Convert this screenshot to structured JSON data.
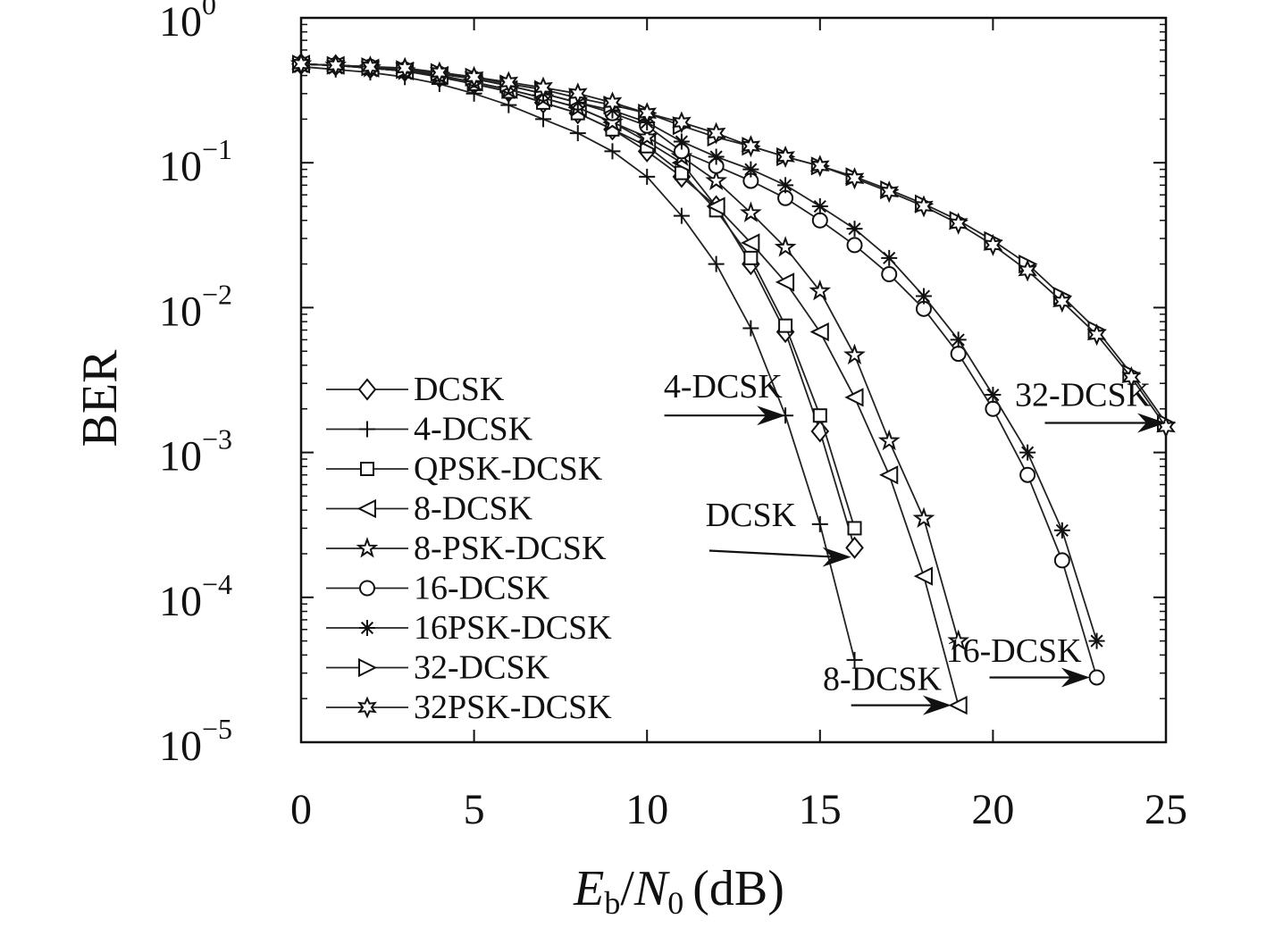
{
  "chart_data": {
    "type": "line",
    "xlabel": "E_b/N_0 (dB)",
    "xlabel_parts": {
      "e": "E",
      "b": "b",
      "slash": "/",
      "n": "N",
      "zero": "0",
      "unit": "(dB)"
    },
    "ylabel": "BER",
    "xlim": [
      0,
      25
    ],
    "ylim": [
      1e-05,
      1
    ],
    "y_scale": "log",
    "grid": false,
    "legend_position": "left-bottom",
    "x_ticks": [
      {
        "value": 0,
        "label": "0"
      },
      {
        "value": 5,
        "label": "5"
      },
      {
        "value": 10,
        "label": "10"
      },
      {
        "value": 15,
        "label": "15"
      },
      {
        "value": 20,
        "label": "20"
      },
      {
        "value": 25,
        "label": "25"
      }
    ],
    "y_ticks": [
      {
        "value": 1,
        "base": "10",
        "exp": "0"
      },
      {
        "value": 0.1,
        "base": "10",
        "exp": "−1"
      },
      {
        "value": 0.01,
        "base": "10",
        "exp": "−2"
      },
      {
        "value": 0.001,
        "base": "10",
        "exp": "−3"
      },
      {
        "value": 0.0001,
        "base": "10",
        "exp": "−4"
      },
      {
        "value": 1e-05,
        "base": "10",
        "exp": "−5"
      }
    ],
    "series": [
      {
        "name": "DCSK",
        "marker": "diamond",
        "x": [
          0,
          1,
          2,
          3,
          4,
          5,
          6,
          7,
          8,
          9,
          10,
          11,
          12,
          13,
          14,
          15,
          16
        ],
        "y": [
          0.48,
          0.47,
          0.45,
          0.43,
          0.39,
          0.35,
          0.31,
          0.26,
          0.22,
          0.17,
          0.12,
          0.08,
          0.05,
          0.02,
          0.0068,
          0.0014,
          0.00022
        ]
      },
      {
        "name": "4-DCSK",
        "marker": "plus",
        "x": [
          0,
          1,
          2,
          3,
          4,
          5,
          6,
          7,
          8,
          9,
          10,
          11,
          12,
          13,
          14,
          15,
          16
        ],
        "y": [
          0.46,
          0.44,
          0.42,
          0.39,
          0.35,
          0.3,
          0.25,
          0.2,
          0.16,
          0.12,
          0.08,
          0.043,
          0.02,
          0.0072,
          0.0018,
          0.00032,
          3.7e-05
        ]
      },
      {
        "name": "QPSK-DCSK",
        "marker": "square",
        "x": [
          0,
          1,
          2,
          3,
          4,
          5,
          6,
          7,
          8,
          9,
          10,
          11,
          12,
          13,
          14,
          15,
          16
        ],
        "y": [
          0.48,
          0.47,
          0.45,
          0.43,
          0.39,
          0.35,
          0.31,
          0.26,
          0.22,
          0.17,
          0.13,
          0.085,
          0.047,
          0.022,
          0.0075,
          0.0018,
          0.0003
        ]
      },
      {
        "name": "8-DCSK",
        "marker": "triangle-left",
        "x": [
          0,
          1,
          2,
          3,
          4,
          5,
          6,
          7,
          8,
          9,
          10,
          11,
          12,
          13,
          14,
          15,
          16,
          17,
          18,
          19
        ],
        "y": [
          0.48,
          0.47,
          0.45,
          0.43,
          0.4,
          0.36,
          0.32,
          0.28,
          0.24,
          0.19,
          0.14,
          0.1,
          0.05,
          0.028,
          0.015,
          0.0068,
          0.0024,
          0.0007,
          0.00014,
          1.8e-05
        ]
      },
      {
        "name": "8-PSK-DCSK",
        "marker": "star5",
        "x": [
          0,
          1,
          2,
          3,
          4,
          5,
          6,
          7,
          8,
          9,
          10,
          11,
          12,
          13,
          14,
          15,
          16,
          17,
          18,
          19
        ],
        "y": [
          0.48,
          0.47,
          0.45,
          0.43,
          0.4,
          0.36,
          0.32,
          0.28,
          0.24,
          0.19,
          0.15,
          0.11,
          0.075,
          0.045,
          0.026,
          0.013,
          0.0047,
          0.0012,
          0.00035,
          5e-05
        ]
      },
      {
        "name": "16-DCSK",
        "marker": "circle",
        "x": [
          0,
          1,
          2,
          3,
          4,
          5,
          6,
          7,
          8,
          9,
          10,
          11,
          12,
          13,
          14,
          15,
          16,
          17,
          18,
          19,
          20,
          21,
          22,
          23
        ],
        "y": [
          0.48,
          0.47,
          0.46,
          0.44,
          0.41,
          0.38,
          0.34,
          0.3,
          0.26,
          0.22,
          0.18,
          0.12,
          0.095,
          0.075,
          0.057,
          0.04,
          0.027,
          0.017,
          0.0098,
          0.0048,
          0.002,
          0.0007,
          0.00018,
          2.8e-05
        ]
      },
      {
        "name": "16PSK-DCSK",
        "marker": "asterisk",
        "x": [
          0,
          1,
          2,
          3,
          4,
          5,
          6,
          7,
          8,
          9,
          10,
          11,
          12,
          13,
          14,
          15,
          16,
          17,
          18,
          19,
          20,
          21,
          22,
          23
        ],
        "y": [
          0.48,
          0.47,
          0.46,
          0.44,
          0.41,
          0.38,
          0.34,
          0.3,
          0.26,
          0.23,
          0.19,
          0.14,
          0.11,
          0.09,
          0.07,
          0.05,
          0.035,
          0.022,
          0.012,
          0.006,
          0.0025,
          0.001,
          0.00029,
          5e-05
        ]
      },
      {
        "name": "32-DCSK",
        "marker": "triangle-right",
        "x": [
          0,
          1,
          2,
          3,
          4,
          5,
          6,
          7,
          8,
          9,
          10,
          11,
          12,
          13,
          14,
          15,
          16,
          17,
          18,
          19,
          20,
          21,
          22,
          23,
          24,
          25
        ],
        "y": [
          0.48,
          0.47,
          0.46,
          0.44,
          0.42,
          0.39,
          0.35,
          0.32,
          0.28,
          0.25,
          0.22,
          0.18,
          0.15,
          0.13,
          0.11,
          0.095,
          0.08,
          0.065,
          0.052,
          0.04,
          0.029,
          0.02,
          0.012,
          0.007,
          0.0035,
          0.0016
        ]
      },
      {
        "name": "32PSK-DCSK",
        "marker": "star6",
        "x": [
          0,
          1,
          2,
          3,
          4,
          5,
          6,
          7,
          8,
          9,
          10,
          11,
          12,
          13,
          14,
          15,
          16,
          17,
          18,
          19,
          20,
          21,
          22,
          23,
          24,
          25
        ],
        "y": [
          0.48,
          0.47,
          0.46,
          0.45,
          0.42,
          0.39,
          0.36,
          0.33,
          0.3,
          0.26,
          0.22,
          0.19,
          0.16,
          0.13,
          0.11,
          0.095,
          0.078,
          0.063,
          0.05,
          0.038,
          0.027,
          0.018,
          0.011,
          0.0065,
          0.0033,
          0.0015
        ]
      }
    ],
    "annotations": [
      {
        "text": "4-DCSK",
        "label_x": 12.2,
        "label_y": 0.0024,
        "tail_x": 10.5,
        "tail_y": 0.0018,
        "tip_x": 14.0,
        "tip_y": 0.0018
      },
      {
        "text": "DCSK",
        "label_x": 13.0,
        "label_y": 0.00031,
        "tail_x": 11.8,
        "tail_y": 0.00021,
        "tip_x": 15.9,
        "tip_y": 0.00019
      },
      {
        "text": "32-DCSK",
        "label_x": 22.6,
        "label_y": 0.0021,
        "tail_x": 21.5,
        "tail_y": 0.0016,
        "tip_x": 25.0,
        "tip_y": 0.0016
      },
      {
        "text": "16-DCSK",
        "label_x": 20.6,
        "label_y": 3.6e-05,
        "tail_x": 19.9,
        "tail_y": 2.8e-05,
        "tip_x": 22.8,
        "tip_y": 2.8e-05
      },
      {
        "text": "8-DCSK",
        "label_x": 16.8,
        "label_y": 2.3e-05,
        "tail_x": 15.9,
        "tail_y": 1.8e-05,
        "tip_x": 18.8,
        "tip_y": 1.8e-05
      }
    ]
  }
}
